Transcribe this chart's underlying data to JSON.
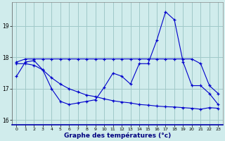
{
  "xlabel": "Graphe des températures (°c)",
  "background_color": "#d0ecec",
  "grid_color": "#a0c8c8",
  "line_color": "#0000cc",
  "hours": [
    0,
    1,
    2,
    3,
    4,
    5,
    6,
    7,
    8,
    9,
    10,
    11,
    12,
    13,
    14,
    15,
    16,
    17,
    18,
    19,
    20,
    21,
    22,
    23
  ],
  "line1": [
    17.4,
    17.85,
    17.9,
    17.6,
    17.0,
    16.6,
    16.5,
    16.55,
    16.6,
    16.65,
    17.05,
    17.5,
    17.4,
    17.15,
    17.8,
    17.8,
    18.55,
    19.45,
    19.2,
    17.85,
    17.1,
    17.1,
    16.85,
    16.5
  ],
  "line2": [
    17.85,
    17.95,
    17.95,
    17.95,
    17.95,
    17.95,
    17.95,
    17.95,
    17.95,
    17.95,
    17.95,
    17.95,
    17.95,
    17.95,
    17.95,
    17.95,
    17.95,
    17.95,
    17.95,
    17.95,
    17.95,
    17.8,
    17.1,
    16.85
  ],
  "line3": [
    17.8,
    17.8,
    17.75,
    17.6,
    17.35,
    17.15,
    17.0,
    16.9,
    16.8,
    16.75,
    16.68,
    16.62,
    16.58,
    16.55,
    16.5,
    16.48,
    16.45,
    16.43,
    16.42,
    16.4,
    16.38,
    16.35,
    16.4,
    16.38
  ],
  "ylim": [
    15.85,
    19.75
  ],
  "yticks": [
    16,
    17,
    18,
    19
  ],
  "xlim": [
    -0.5,
    23.5
  ],
  "xticks": [
    0,
    1,
    2,
    3,
    4,
    5,
    6,
    7,
    8,
    9,
    10,
    11,
    12,
    13,
    14,
    15,
    16,
    17,
    18,
    19,
    20,
    21,
    22,
    23
  ]
}
